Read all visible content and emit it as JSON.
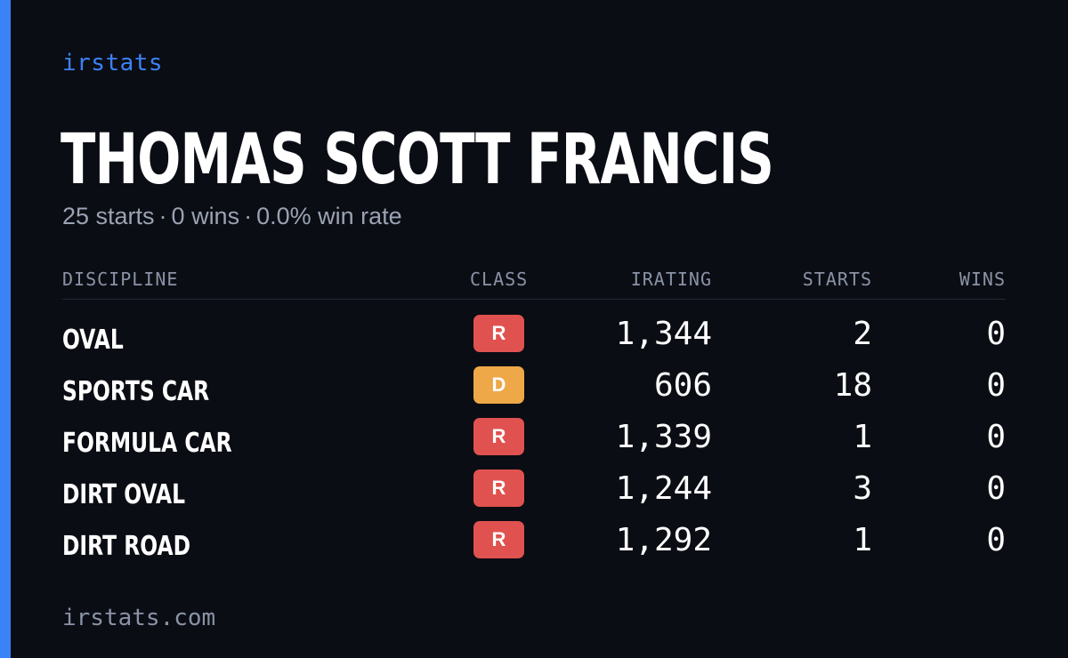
{
  "brand": "irstats",
  "driver": {
    "name": "THOMAS SCOTT FRANCIS",
    "summary": {
      "starts": "25 starts",
      "wins": "0 wins",
      "win_rate": "0.0% win rate",
      "separator": "·"
    }
  },
  "table": {
    "headers": {
      "discipline": "DISCIPLINE",
      "class": "CLASS",
      "irating": "IRATING",
      "starts": "STARTS",
      "wins": "WINS"
    },
    "rows": [
      {
        "discipline": "OVAL",
        "class": "R",
        "class_color": "#e0524f",
        "irating": "1,344",
        "starts": "2",
        "wins": "0"
      },
      {
        "discipline": "SPORTS CAR",
        "class": "D",
        "class_color": "#eea848",
        "irating": "606",
        "starts": "18",
        "wins": "0"
      },
      {
        "discipline": "FORMULA CAR",
        "class": "R",
        "class_color": "#e0524f",
        "irating": "1,339",
        "starts": "1",
        "wins": "0"
      },
      {
        "discipline": "DIRT OVAL",
        "class": "R",
        "class_color": "#e0524f",
        "irating": "1,244",
        "starts": "3",
        "wins": "0"
      },
      {
        "discipline": "DIRT ROAD",
        "class": "R",
        "class_color": "#e0524f",
        "irating": "1,292",
        "starts": "1",
        "wins": "0"
      }
    ]
  },
  "footer": {
    "url": "irstats.com"
  },
  "colors": {
    "background": "#0b0d14",
    "accent": "#3b82f6",
    "muted_text": "#9aa3b2"
  }
}
